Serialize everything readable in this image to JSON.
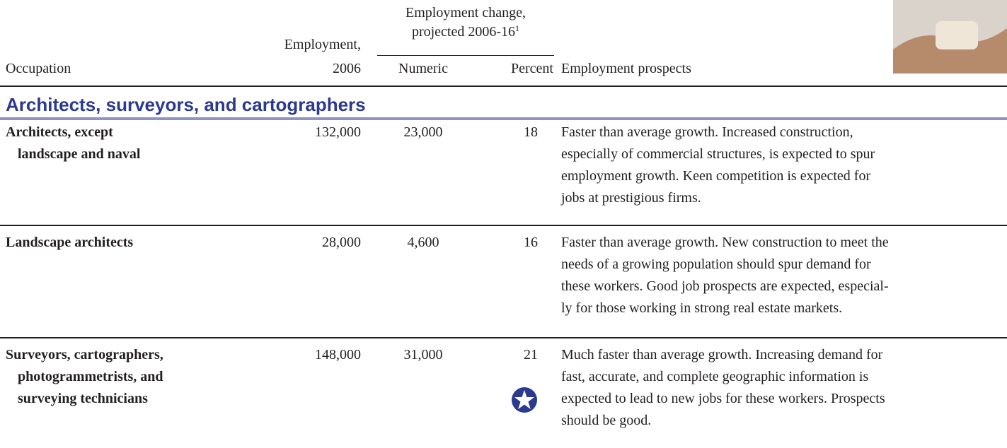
{
  "header": {
    "occupation": "Occupation",
    "employment": [
      "Employment,",
      "2006"
    ],
    "change": [
      "Employment change,",
      "projected 2006-16"
    ],
    "change_footnote": "1",
    "numeric": "Numeric",
    "percent": "Percent",
    "prospects": "Employment prospects"
  },
  "section": {
    "title": "Architects, surveyors, and cartographers"
  },
  "table": {
    "rows": [
      {
        "occupation": [
          "Architects, except",
          "landscape and naval"
        ],
        "employment": "132,000",
        "numeric": "23,000",
        "percent": "18",
        "prospects": [
          "Faster than average growth. Increased construction,",
          "especially of commercial structures, is expected to spur",
          "employment growth. Keen competition is expected for",
          "jobs at prestigious firms."
        ]
      },
      {
        "occupation": [
          "Landscape architects"
        ],
        "employment": "28,000",
        "numeric": "4,600",
        "percent": "16",
        "prospects": [
          "Faster than average growth. New construction to meet the",
          "needs of a growing population should spur demand for",
          "these workers. Good job prospects are expected, especial-",
          "ly for those working in strong real estate markets."
        ]
      },
      {
        "occupation": [
          "Surveyors, cartographers,",
          "photogrammetrists, and",
          "surveying technicians"
        ],
        "employment": "148,000",
        "numeric": "31,000",
        "percent": "21",
        "prospects": [
          "Much faster than average growth. Increasing demand for",
          "fast, accurate, and complete geographic information is",
          "expected to lead to new jobs for these workers. Prospects",
          "should be good."
        ]
      }
    ]
  }
}
